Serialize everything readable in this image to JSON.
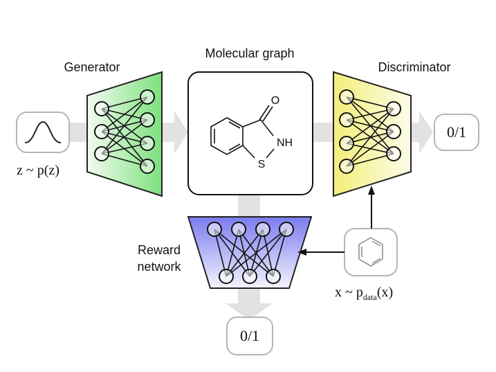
{
  "labels": {
    "generator": "Generator",
    "molecular_graph": "Molecular graph",
    "discriminator": "Discriminator",
    "reward_line1": "Reward",
    "reward_line2": "network"
  },
  "math": {
    "z_prefix": "z ~ p(z)",
    "x_prefix": "x ~ p",
    "x_sub": "data",
    "x_suffix": "(x)"
  },
  "outputs": {
    "discriminator": "0/1",
    "reward": "0/1"
  },
  "molecule": {
    "atom_o": "O",
    "atom_nh": "NH",
    "atom_s": "S"
  },
  "colors": {
    "generator": "#7de07d",
    "discriminator": "#f3ee7a",
    "reward": "#7f7ff0",
    "flow_arrow": "#e2e2e2",
    "box_border": "#b5b5b5"
  },
  "icons": {
    "noise": "gaussian-curve-icon",
    "data": "benzene-icon"
  }
}
